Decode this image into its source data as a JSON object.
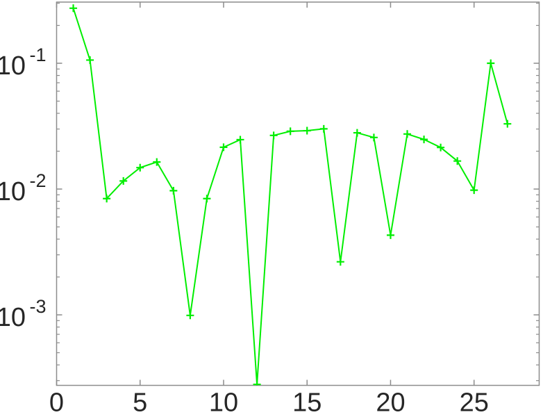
{
  "figure": {
    "background": "#ffffff",
    "axes_color": "#8c8c8c",
    "label_color": "#262626"
  },
  "chart_data": {
    "type": "line",
    "yscale": "log",
    "title": "",
    "xlabel": "",
    "ylabel": "",
    "grid": false,
    "legend": null,
    "line_color": "#00ee00",
    "marker": "plus",
    "x": [
      1,
      2,
      3,
      4,
      5,
      6,
      7,
      8,
      9,
      10,
      11,
      12,
      13,
      14,
      15,
      16,
      17,
      18,
      19,
      20,
      21,
      22,
      23,
      24,
      25,
      26,
      27
    ],
    "values": [
      0.274,
      0.106,
      0.0084,
      0.0116,
      0.0148,
      0.0164,
      0.0097,
      0.00099,
      0.0084,
      0.0215,
      0.0247,
      0.00028,
      0.0267,
      0.0288,
      0.0291,
      0.0301,
      0.00264,
      0.028,
      0.0257,
      0.0043,
      0.0274,
      0.0248,
      0.0214,
      0.0167,
      0.0098,
      0.1,
      0.033
    ],
    "xlim": [
      0,
      28.9
    ],
    "ylim": [
      0.000275,
      0.3064
    ],
    "x_ticks": [
      {
        "value": 0,
        "label": "0"
      },
      {
        "value": 5,
        "label": "5"
      },
      {
        "value": 10,
        "label": "10"
      },
      {
        "value": 15,
        "label": "15"
      },
      {
        "value": 20,
        "label": "20"
      },
      {
        "value": 25,
        "label": "25"
      }
    ],
    "y_ticks": [
      {
        "value": 0.1,
        "base": "10",
        "exponent": "-1"
      },
      {
        "value": 0.01,
        "base": "10",
        "exponent": "-2"
      },
      {
        "value": 0.001,
        "base": "10",
        "exponent": "-3"
      }
    ],
    "y_minor_mantissas": [
      2,
      3,
      4,
      5,
      6,
      7,
      8,
      9
    ],
    "y_minor_decades": [
      -1,
      -2,
      -3,
      -4
    ]
  }
}
